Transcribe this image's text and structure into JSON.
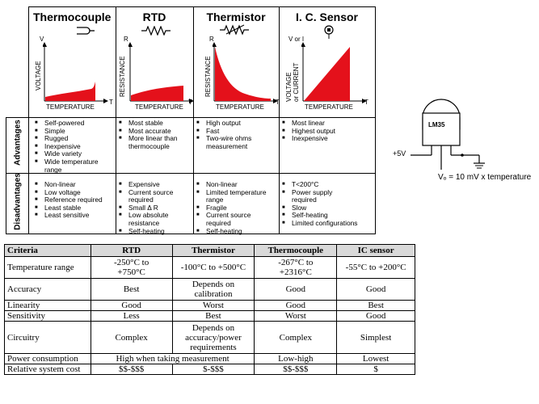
{
  "sensors": [
    {
      "name": "Thermocouple",
      "y_axis": "VOLTAGE",
      "y_sym": "V",
      "x_axis": "TEMPERATURE",
      "x_sym": "T"
    },
    {
      "name": "RTD",
      "y_axis": "RESISTANCE",
      "y_sym": "R",
      "x_axis": "TEMPERATURE",
      "x_sym": "T"
    },
    {
      "name": "Thermistor",
      "y_axis": "RESISTANCE",
      "y_sym": "R",
      "x_axis": "TEMPERATURE",
      "x_sym": "T"
    },
    {
      "name": "I. C. Sensor",
      "y_axis_1": "VOLTAGE",
      "y_axis_2": "or CURRENT",
      "y_sym": "V or I",
      "x_axis": "TEMPERATURE",
      "x_sym": "T"
    }
  ],
  "row_labels": {
    "advantages": "Advantages",
    "disadvantages": "Disadvantages"
  },
  "advantages": [
    [
      "Self-powered",
      "Simple",
      "Rugged",
      "Inexpensive",
      "Wide variety",
      "Wide temperature range"
    ],
    [
      "Most stable",
      "Most accurate",
      "More linear than thermocouple"
    ],
    [
      "High output",
      "Fast",
      "Two-wire ohms measurement"
    ],
    [
      "Most linear",
      "Highest output",
      "Inexpensive"
    ]
  ],
  "disadvantages": [
    [
      "Non-linear",
      "Low voltage",
      "Reference required",
      "Least stable",
      "Least sensitive"
    ],
    [
      "Expensive",
      "Current source required",
      "Small Δ R",
      "Low absolute resistance",
      "Self-heating"
    ],
    [
      "Non-linear",
      "Limited temperature range",
      "Fragile",
      "Current source required",
      "Self-heating"
    ],
    [
      "T<200°C",
      "Power supply required",
      "Slow",
      "Self-heating",
      "Limited configurations"
    ]
  ],
  "lm35": {
    "chip_label": "LM35",
    "supply": "+5V",
    "formula": "Vₒ = 10 mV x temperature"
  },
  "table": {
    "headers": [
      "Criteria",
      "RTD",
      "Thermistor",
      "Thermocouple",
      "IC sensor"
    ],
    "rows": [
      [
        "Temperature range",
        "-250°C to +750°C",
        "-100°C to +500°C",
        "-267°C to +2316°C",
        "-55°C to +200°C"
      ],
      [
        "Accuracy",
        "Best",
        "Depends on calibration",
        "Good",
        "Good"
      ],
      [
        "Linearity",
        "Good",
        "Worst",
        "Good",
        "Best"
      ],
      [
        "Sensitivity",
        "Less",
        "Best",
        "Worst",
        "Good"
      ],
      [
        "Circuitry",
        "Complex",
        "Depends on accuracy/power requirements",
        "Complex",
        "Simplest"
      ],
      [
        "Power consumption",
        "High when taking measurement",
        "",
        "Low-high",
        "Lowest"
      ],
      [
        "Relative system cost",
        "$$-$$$",
        "$-$$$",
        "$$-$$$",
        "$"
      ]
    ]
  }
}
